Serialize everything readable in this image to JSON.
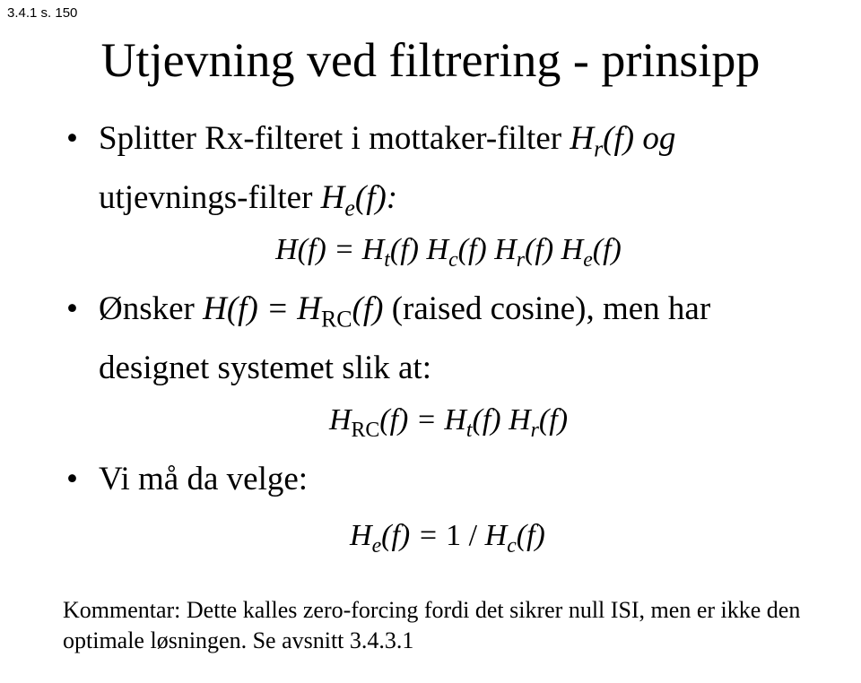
{
  "header": {
    "ref": "3.4.1 s. 150"
  },
  "title": "Utjevning ved filtrering - prinsipp",
  "bullets": {
    "b1_line1_pre": "Splitter Rx-filteret i mottaker-filter ",
    "b1_line1_hr": "H",
    "b1_line1_hr_sub": "r",
    "b1_line1_post": "(f) og",
    "b1_line2_pre": "utjevnings-filter ",
    "b1_line2_he": "H",
    "b1_line2_he_sub": "e",
    "b1_line2_post": "(f):",
    "eq1_txt": "H(f) = H",
    "eq1_t_sub": "t",
    "eq1_mid1": "(f) H",
    "eq1_c_sub": "c",
    "eq1_mid2": "(f) H",
    "eq1_r_sub": "r",
    "eq1_mid3": "(f) H",
    "eq1_e_sub": "e",
    "eq1_end": "(f)",
    "b2_pre": "Ønsker ",
    "b2_hf": "H(f) = H",
    "b2_rc": "RC",
    "b2_post1": "(f) ",
    "b2_raised": "(raised cosine), men har",
    "b2_line2": "designet systemet slik at:",
    "eq2_lhs": "H",
    "eq2_rc": "RC",
    "eq2_mid": "(f) = H",
    "eq2_t": "t",
    "eq2_mid2": "(f) H",
    "eq2_r": "r",
    "eq2_end": "(f)",
    "b3": "Vi må da velge:",
    "eq3_lhs": "H",
    "eq3_e": "e",
    "eq3_mid": "(f) = ",
    "eq3_one": "1",
    "eq3_slash": " / ",
    "eq3_h": "H",
    "eq3_c": "c",
    "eq3_end": "(f)"
  },
  "comment": {
    "line1": "Kommentar: Dette kalles zero-forcing fordi det sikrer null ISI, men er ikke den",
    "line2": "optimale løsningen. Se avsnitt 3.4.3.1"
  }
}
